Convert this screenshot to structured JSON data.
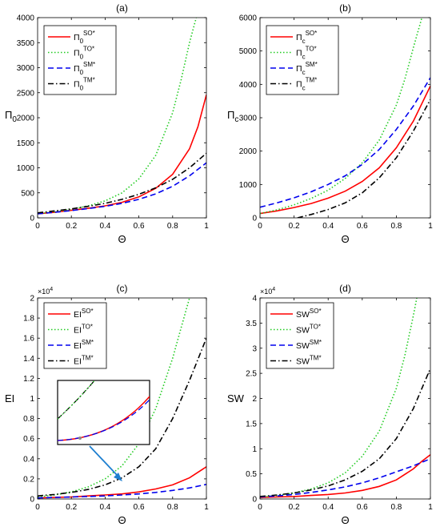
{
  "chart_data": [
    {
      "type": "line",
      "panel_label": "(a)",
      "xlabel": "Θ",
      "ylabel_base": "Π",
      "ylabel_sub": "0",
      "xlim": [
        0,
        1
      ],
      "ylim": [
        0,
        4000
      ],
      "xticks": [
        0,
        0.2,
        0.4,
        0.6,
        0.8,
        1
      ],
      "xtick_labels": [
        "0",
        "0.2",
        "0.4",
        "0.6",
        "0.8",
        "1"
      ],
      "yticks": [
        0,
        500,
        1000,
        1500,
        2000,
        2500,
        3000,
        3500,
        4000
      ],
      "ytick_labels": [
        "0",
        "500",
        "1000",
        "1500",
        "2000",
        "2500",
        "3000",
        "3500",
        "4000"
      ],
      "exponent_label": "",
      "legend_position": "top-left",
      "series": [
        {
          "name": "Π0SO*",
          "legend_base": "Π",
          "legend_sub": "0",
          "legend_sup": "SO*",
          "color": "#ff0000",
          "style": "solid",
          "x": [
            0,
            0.1,
            0.2,
            0.3,
            0.4,
            0.5,
            0.6,
            0.7,
            0.8,
            0.9,
            0.95,
            1.0
          ],
          "y": [
            80,
            110,
            150,
            190,
            240,
            310,
            420,
            590,
            870,
            1380,
            1820,
            2460
          ]
        },
        {
          "name": "Π0TO*",
          "legend_base": "Π",
          "legend_sub": "0",
          "legend_sup": "TO*",
          "color": "#22cc22",
          "style": "dotted",
          "x": [
            0,
            0.1,
            0.2,
            0.3,
            0.4,
            0.5,
            0.6,
            0.7,
            0.8,
            0.85,
            0.9,
            0.94
          ],
          "y": [
            80,
            120,
            170,
            240,
            340,
            500,
            780,
            1250,
            2100,
            2750,
            3500,
            4000
          ]
        },
        {
          "name": "Π0SM*",
          "legend_base": "Π",
          "legend_sub": "0",
          "legend_sup": "SM*",
          "color": "#0000ee",
          "style": "dashed",
          "x": [
            0,
            0.1,
            0.2,
            0.3,
            0.4,
            0.5,
            0.6,
            0.7,
            0.8,
            0.9,
            1.0
          ],
          "y": [
            80,
            110,
            145,
            185,
            230,
            290,
            370,
            480,
            630,
            840,
            1100
          ]
        },
        {
          "name": "Π0TM*",
          "legend_base": "Π",
          "legend_sub": "0",
          "legend_sup": "TM*",
          "color": "#000000",
          "style": "dashdot",
          "x": [
            0,
            0.1,
            0.2,
            0.3,
            0.4,
            0.5,
            0.6,
            0.7,
            0.8,
            0.9,
            1.0
          ],
          "y": [
            100,
            140,
            180,
            230,
            290,
            370,
            470,
            600,
            770,
            1000,
            1290
          ]
        }
      ]
    },
    {
      "type": "line",
      "panel_label": "(b)",
      "xlabel": "Θ",
      "ylabel_base": "Π",
      "ylabel_sub": "c",
      "xlim": [
        0,
        1
      ],
      "ylim": [
        0,
        6000
      ],
      "xticks": [
        0,
        0.2,
        0.4,
        0.6,
        0.8,
        1
      ],
      "xtick_labels": [
        "0",
        "0.2",
        "0.4",
        "0.6",
        "0.8",
        "1"
      ],
      "yticks": [
        0,
        1000,
        2000,
        3000,
        4000,
        5000,
        6000
      ],
      "ytick_labels": [
        "0",
        "1000",
        "2000",
        "3000",
        "4000",
        "5000",
        "6000"
      ],
      "exponent_label": "",
      "legend_position": "top-right",
      "series": [
        {
          "name": "ΠcSO*",
          "legend_base": "Π",
          "legend_sub": "c",
          "legend_sup": "SO*",
          "color": "#ff0000",
          "style": "solid",
          "x": [
            0,
            0.1,
            0.2,
            0.3,
            0.4,
            0.5,
            0.6,
            0.7,
            0.8,
            0.9,
            1.0
          ],
          "y": [
            130,
            210,
            310,
            430,
            590,
            800,
            1090,
            1500,
            2100,
            2900,
            3950
          ]
        },
        {
          "name": "ΠcTO*",
          "legend_base": "Π",
          "legend_sub": "c",
          "legend_sup": "TO*",
          "color": "#22cc22",
          "style": "dotted",
          "x": [
            0,
            0.1,
            0.2,
            0.3,
            0.4,
            0.5,
            0.6,
            0.7,
            0.8,
            0.85,
            0.9,
            0.95
          ],
          "y": [
            130,
            240,
            390,
            580,
            830,
            1180,
            1650,
            2330,
            3380,
            4150,
            5100,
            6000
          ]
        },
        {
          "name": "ΠcSM*",
          "legend_base": "Π",
          "legend_sub": "c",
          "legend_sup": "SM*",
          "color": "#0000ee",
          "style": "dashed",
          "x": [
            0,
            0.1,
            0.2,
            0.3,
            0.4,
            0.5,
            0.6,
            0.7,
            0.8,
            0.9,
            1.0
          ],
          "y": [
            320,
            450,
            600,
            780,
            1000,
            1260,
            1600,
            2050,
            2650,
            3350,
            4200
          ]
        },
        {
          "name": "ΠcTM*",
          "legend_base": "Π",
          "legend_sub": "c",
          "legend_sup": "TM*",
          "color": "#000000",
          "style": "dashdot",
          "x": [
            0.22,
            0.3,
            0.4,
            0.5,
            0.6,
            0.7,
            0.8,
            0.9,
            1.0
          ],
          "y": [
            0,
            100,
            250,
            450,
            750,
            1200,
            1800,
            2600,
            3550
          ]
        }
      ]
    },
    {
      "type": "line",
      "panel_label": "(c)",
      "xlabel": "Θ",
      "ylabel_base": "EI",
      "ylabel_sub": "",
      "xlim": [
        0,
        1
      ],
      "ylim": [
        0,
        2
      ],
      "xticks": [
        0,
        0.2,
        0.4,
        0.6,
        0.8,
        1
      ],
      "xtick_labels": [
        "0",
        "0.2",
        "0.4",
        "0.6",
        "0.8",
        "1"
      ],
      "yticks": [
        0,
        0.2,
        0.4,
        0.6,
        0.8,
        1,
        1.2,
        1.4,
        1.6,
        1.8,
        2
      ],
      "ytick_labels": [
        "0",
        "0.2",
        "0.4",
        "0.6",
        "0.8",
        "1",
        "1.2",
        "1.4",
        "1.6",
        "1.8",
        "2"
      ],
      "exponent_label": "×10",
      "exponent_power": "4",
      "legend_position": "top-left",
      "series": [
        {
          "name": "EISO*",
          "legend_base": "EI",
          "legend_sub": "",
          "legend_sup": "SO*",
          "color": "#ff0000",
          "style": "solid",
          "x": [
            0,
            0.1,
            0.2,
            0.3,
            0.4,
            0.5,
            0.6,
            0.7,
            0.8,
            0.9,
            1.0
          ],
          "y": [
            0.01,
            0.015,
            0.02,
            0.03,
            0.04,
            0.05,
            0.07,
            0.1,
            0.14,
            0.21,
            0.32
          ]
        },
        {
          "name": "EITO*",
          "legend_base": "EI",
          "legend_sub": "",
          "legend_sup": "TO*",
          "color": "#22cc22",
          "style": "dotted",
          "x": [
            0,
            0.1,
            0.2,
            0.3,
            0.4,
            0.5,
            0.6,
            0.7,
            0.8,
            0.85,
            0.9
          ],
          "y": [
            0.02,
            0.04,
            0.07,
            0.12,
            0.2,
            0.33,
            0.55,
            0.9,
            1.4,
            1.7,
            2.0
          ]
        },
        {
          "name": "EISM*",
          "legend_base": "EI",
          "legend_sub": "",
          "legend_sup": "SM*",
          "color": "#0000ee",
          "style": "dashed",
          "x": [
            0,
            0.1,
            0.2,
            0.3,
            0.4,
            0.5,
            0.6,
            0.7,
            0.8,
            0.9,
            1.0
          ],
          "y": [
            0.01,
            0.015,
            0.02,
            0.025,
            0.03,
            0.04,
            0.05,
            0.065,
            0.085,
            0.11,
            0.145
          ]
        },
        {
          "name": "EITM*",
          "legend_base": "EI",
          "legend_sub": "",
          "legend_sup": "TM*",
          "color": "#000000",
          "style": "dashdot",
          "x": [
            0,
            0.1,
            0.2,
            0.3,
            0.4,
            0.5,
            0.6,
            0.7,
            0.8,
            0.9,
            1.0
          ],
          "y": [
            0.03,
            0.045,
            0.065,
            0.095,
            0.14,
            0.21,
            0.32,
            0.5,
            0.8,
            1.18,
            1.6
          ]
        }
      ]
    },
    {
      "type": "line",
      "panel_label": "(d)",
      "xlabel": "Θ",
      "ylabel_base": "SW",
      "ylabel_sub": "",
      "xlim": [
        0,
        1
      ],
      "ylim": [
        0,
        4
      ],
      "xticks": [
        0,
        0.2,
        0.4,
        0.6,
        0.8,
        1
      ],
      "xtick_labels": [
        "0",
        "0.2",
        "0.4",
        "0.6",
        "0.8",
        "1"
      ],
      "yticks": [
        0,
        0.5,
        1,
        1.5,
        2,
        2.5,
        3,
        3.5,
        4
      ],
      "ytick_labels": [
        "0",
        "0.5",
        "1",
        "1.5",
        "2",
        "2.5",
        "3",
        "3.5",
        "4"
      ],
      "exponent_label": "×10",
      "exponent_power": "4",
      "legend_position": "top-left",
      "series": [
        {
          "name": "SWSO*",
          "legend_base": "SW",
          "legend_sub": "",
          "legend_sup": "SO*",
          "color": "#ff0000",
          "style": "solid",
          "x": [
            0,
            0.1,
            0.2,
            0.3,
            0.4,
            0.5,
            0.6,
            0.7,
            0.8,
            0.9,
            0.95,
            1.0
          ],
          "y": [
            0.03,
            0.04,
            0.05,
            0.07,
            0.09,
            0.12,
            0.17,
            0.25,
            0.38,
            0.6,
            0.75,
            0.88
          ]
        },
        {
          "name": "SWTO*",
          "legend_base": "SW",
          "legend_sub": "",
          "legend_sup": "TO*",
          "color": "#22cc22",
          "style": "dotted",
          "x": [
            0,
            0.1,
            0.2,
            0.3,
            0.4,
            0.5,
            0.6,
            0.7,
            0.8,
            0.85,
            0.9,
            0.92
          ],
          "y": [
            0.04,
            0.07,
            0.12,
            0.2,
            0.32,
            0.52,
            0.85,
            1.35,
            2.2,
            2.85,
            3.65,
            4.0
          ]
        },
        {
          "name": "SWSM*",
          "legend_base": "SW",
          "legend_sub": "",
          "legend_sup": "SM*",
          "color": "#0000ee",
          "style": "dashed",
          "x": [
            0,
            0.1,
            0.2,
            0.3,
            0.4,
            0.5,
            0.6,
            0.7,
            0.8,
            0.9,
            1.0
          ],
          "y": [
            0.04,
            0.06,
            0.09,
            0.13,
            0.18,
            0.24,
            0.32,
            0.42,
            0.54,
            0.66,
            0.8
          ]
        },
        {
          "name": "SWTM*",
          "legend_base": "SW",
          "legend_sub": "",
          "legend_sup": "TM*",
          "color": "#000000",
          "style": "dashdot",
          "x": [
            0,
            0.1,
            0.2,
            0.3,
            0.4,
            0.5,
            0.6,
            0.7,
            0.8,
            0.9,
            1.0
          ],
          "y": [
            0.05,
            0.08,
            0.12,
            0.18,
            0.26,
            0.38,
            0.55,
            0.8,
            1.2,
            1.8,
            2.6
          ]
        }
      ]
    }
  ]
}
